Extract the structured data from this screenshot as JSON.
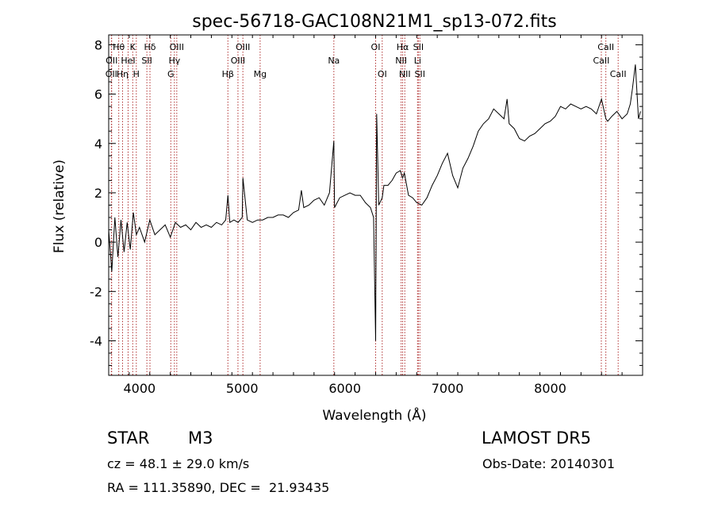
{
  "chart_data": {
    "type": "line",
    "title": "spec-56718-GAC108N21M1_sp13-072.fits",
    "xlabel": "Wavelength (Å)",
    "ylabel": "Flux (relative)",
    "xlim": [
      3700,
      8900
    ],
    "ylim": [
      -5.4,
      8.4
    ],
    "xticks": [
      4000,
      5000,
      6000,
      7000,
      8000
    ],
    "yticks": [
      -4,
      -2,
      0,
      2,
      4,
      6,
      8
    ],
    "grid": false,
    "series": [
      {
        "x": [
          3700,
          3730,
          3760,
          3790,
          3820,
          3850,
          3880,
          3910,
          3940,
          3970,
          4000,
          4050,
          4100,
          4150,
          4200,
          4250,
          4300,
          4350,
          4400,
          4450,
          4500,
          4550,
          4600,
          4650,
          4700,
          4750,
          4800,
          4840,
          4861,
          4880,
          4920,
          4960,
          5000,
          5007,
          5050,
          5100,
          5150,
          5200,
          5250,
          5300,
          5350,
          5400,
          5450,
          5500,
          5550,
          5577,
          5600,
          5650,
          5700,
          5750,
          5800,
          5850,
          5893,
          5900,
          5950,
          6000,
          6050,
          6100,
          6150,
          6200,
          6250,
          6280,
          6300,
          6310,
          6330,
          6364,
          6380,
          6420,
          6460,
          6500,
          6540,
          6563,
          6580,
          6620,
          6660,
          6700,
          6750,
          6800,
          6850,
          6900,
          6950,
          7000,
          7050,
          7100,
          7150,
          7200,
          7250,
          7300,
          7350,
          7400,
          7450,
          7500,
          7550,
          7580,
          7600,
          7650,
          7700,
          7750,
          7800,
          7850,
          7900,
          7950,
          8000,
          8050,
          8100,
          8150,
          8200,
          8250,
          8300,
          8350,
          8400,
          8450,
          8500,
          8542,
          8560,
          8600,
          8650,
          8700,
          8750,
          8780,
          8800,
          8830,
          8860,
          8880
        ],
        "y": [
          0.5,
          -1.2,
          1.0,
          -0.6,
          0.9,
          -0.4,
          0.8,
          -0.3,
          1.2,
          0.3,
          0.6,
          0.0,
          0.9,
          0.3,
          0.5,
          0.7,
          0.2,
          0.8,
          0.6,
          0.7,
          0.5,
          0.8,
          0.6,
          0.7,
          0.6,
          0.8,
          0.7,
          0.9,
          1.9,
          0.8,
          0.9,
          0.8,
          1.0,
          2.6,
          0.9,
          0.8,
          0.9,
          0.9,
          1.0,
          1.0,
          1.1,
          1.1,
          1.0,
          1.2,
          1.3,
          2.1,
          1.4,
          1.5,
          1.7,
          1.8,
          1.5,
          2.0,
          4.1,
          1.4,
          1.8,
          1.9,
          2.0,
          1.9,
          1.9,
          1.6,
          1.4,
          1.0,
          -4.0,
          5.2,
          1.5,
          1.8,
          2.3,
          2.3,
          2.5,
          2.8,
          2.9,
          2.6,
          2.8,
          1.9,
          1.8,
          1.6,
          1.5,
          1.8,
          2.3,
          2.7,
          3.2,
          3.6,
          2.7,
          2.2,
          3.0,
          3.4,
          3.9,
          4.5,
          4.8,
          5.0,
          5.4,
          5.2,
          5.0,
          5.8,
          4.8,
          4.6,
          4.2,
          4.1,
          4.3,
          4.4,
          4.6,
          4.8,
          4.9,
          5.1,
          5.5,
          5.4,
          5.6,
          5.5,
          5.4,
          5.5,
          5.4,
          5.2,
          5.8,
          5.0,
          4.9,
          5.1,
          5.3,
          5.0,
          5.2,
          5.6,
          6.2,
          7.2,
          5.0,
          5.3
        ]
      }
    ],
    "lines": [
      {
        "wl": 3726,
        "row": 2,
        "label": "OII"
      },
      {
        "wl": 3729,
        "row": 1,
        "label": "OII"
      },
      {
        "wl": 3798,
        "row": 0,
        "label": "Hθ"
      },
      {
        "wl": 3835,
        "row": 2,
        "label": "Hη"
      },
      {
        "wl": 3889,
        "row": 1,
        "label": "HeI"
      },
      {
        "wl": 3934,
        "row": 0,
        "label": "K"
      },
      {
        "wl": 3969,
        "row": 2,
        "label": "H"
      },
      {
        "wl": 4072,
        "row": 1,
        "label": "SII"
      },
      {
        "wl": 4102,
        "row": 0,
        "label": "Hδ"
      },
      {
        "wl": 4305,
        "row": 2,
        "label": "G"
      },
      {
        "wl": 4340,
        "row": 1,
        "label": "Hγ"
      },
      {
        "wl": 4363,
        "row": 0,
        "label": "OIII"
      },
      {
        "wl": 4861,
        "row": 2,
        "label": "Hβ"
      },
      {
        "wl": 4959,
        "row": 1,
        "label": "OIII"
      },
      {
        "wl": 5007,
        "row": 0,
        "label": "OIII"
      },
      {
        "wl": 5175,
        "row": 2,
        "label": "Mg"
      },
      {
        "wl": 5893,
        "row": 1,
        "label": "Na"
      },
      {
        "wl": 6300,
        "row": 0,
        "label": "OI"
      },
      {
        "wl": 6364,
        "row": 2,
        "label": "OI"
      },
      {
        "wl": 6548,
        "row": 1,
        "label": "NII"
      },
      {
        "wl": 6563,
        "row": 0,
        "label": "Hα"
      },
      {
        "wl": 6584,
        "row": 2,
        "label": "NII"
      },
      {
        "wl": 6708,
        "row": 1,
        "label": "Li"
      },
      {
        "wl": 6716,
        "row": 0,
        "label": "SII"
      },
      {
        "wl": 6731,
        "row": 2,
        "label": "SII"
      },
      {
        "wl": 8498,
        "row": 1,
        "label": "CaII"
      },
      {
        "wl": 8542,
        "row": 0,
        "label": "CaII"
      },
      {
        "wl": 8662,
        "row": 2,
        "label": "CaII"
      }
    ]
  },
  "info": {
    "object_class": "STAR",
    "subclass": "M3",
    "survey": "LAMOST DR5",
    "redshift_text": "cz = 48.1 ± 29.0 km/s",
    "obs_date_text": "Obs-Date: 20140301",
    "coords_text": "RA = 111.35890, DEC =  21.93435"
  },
  "colors": {
    "line": "#000000",
    "marker": "#b03030"
  }
}
